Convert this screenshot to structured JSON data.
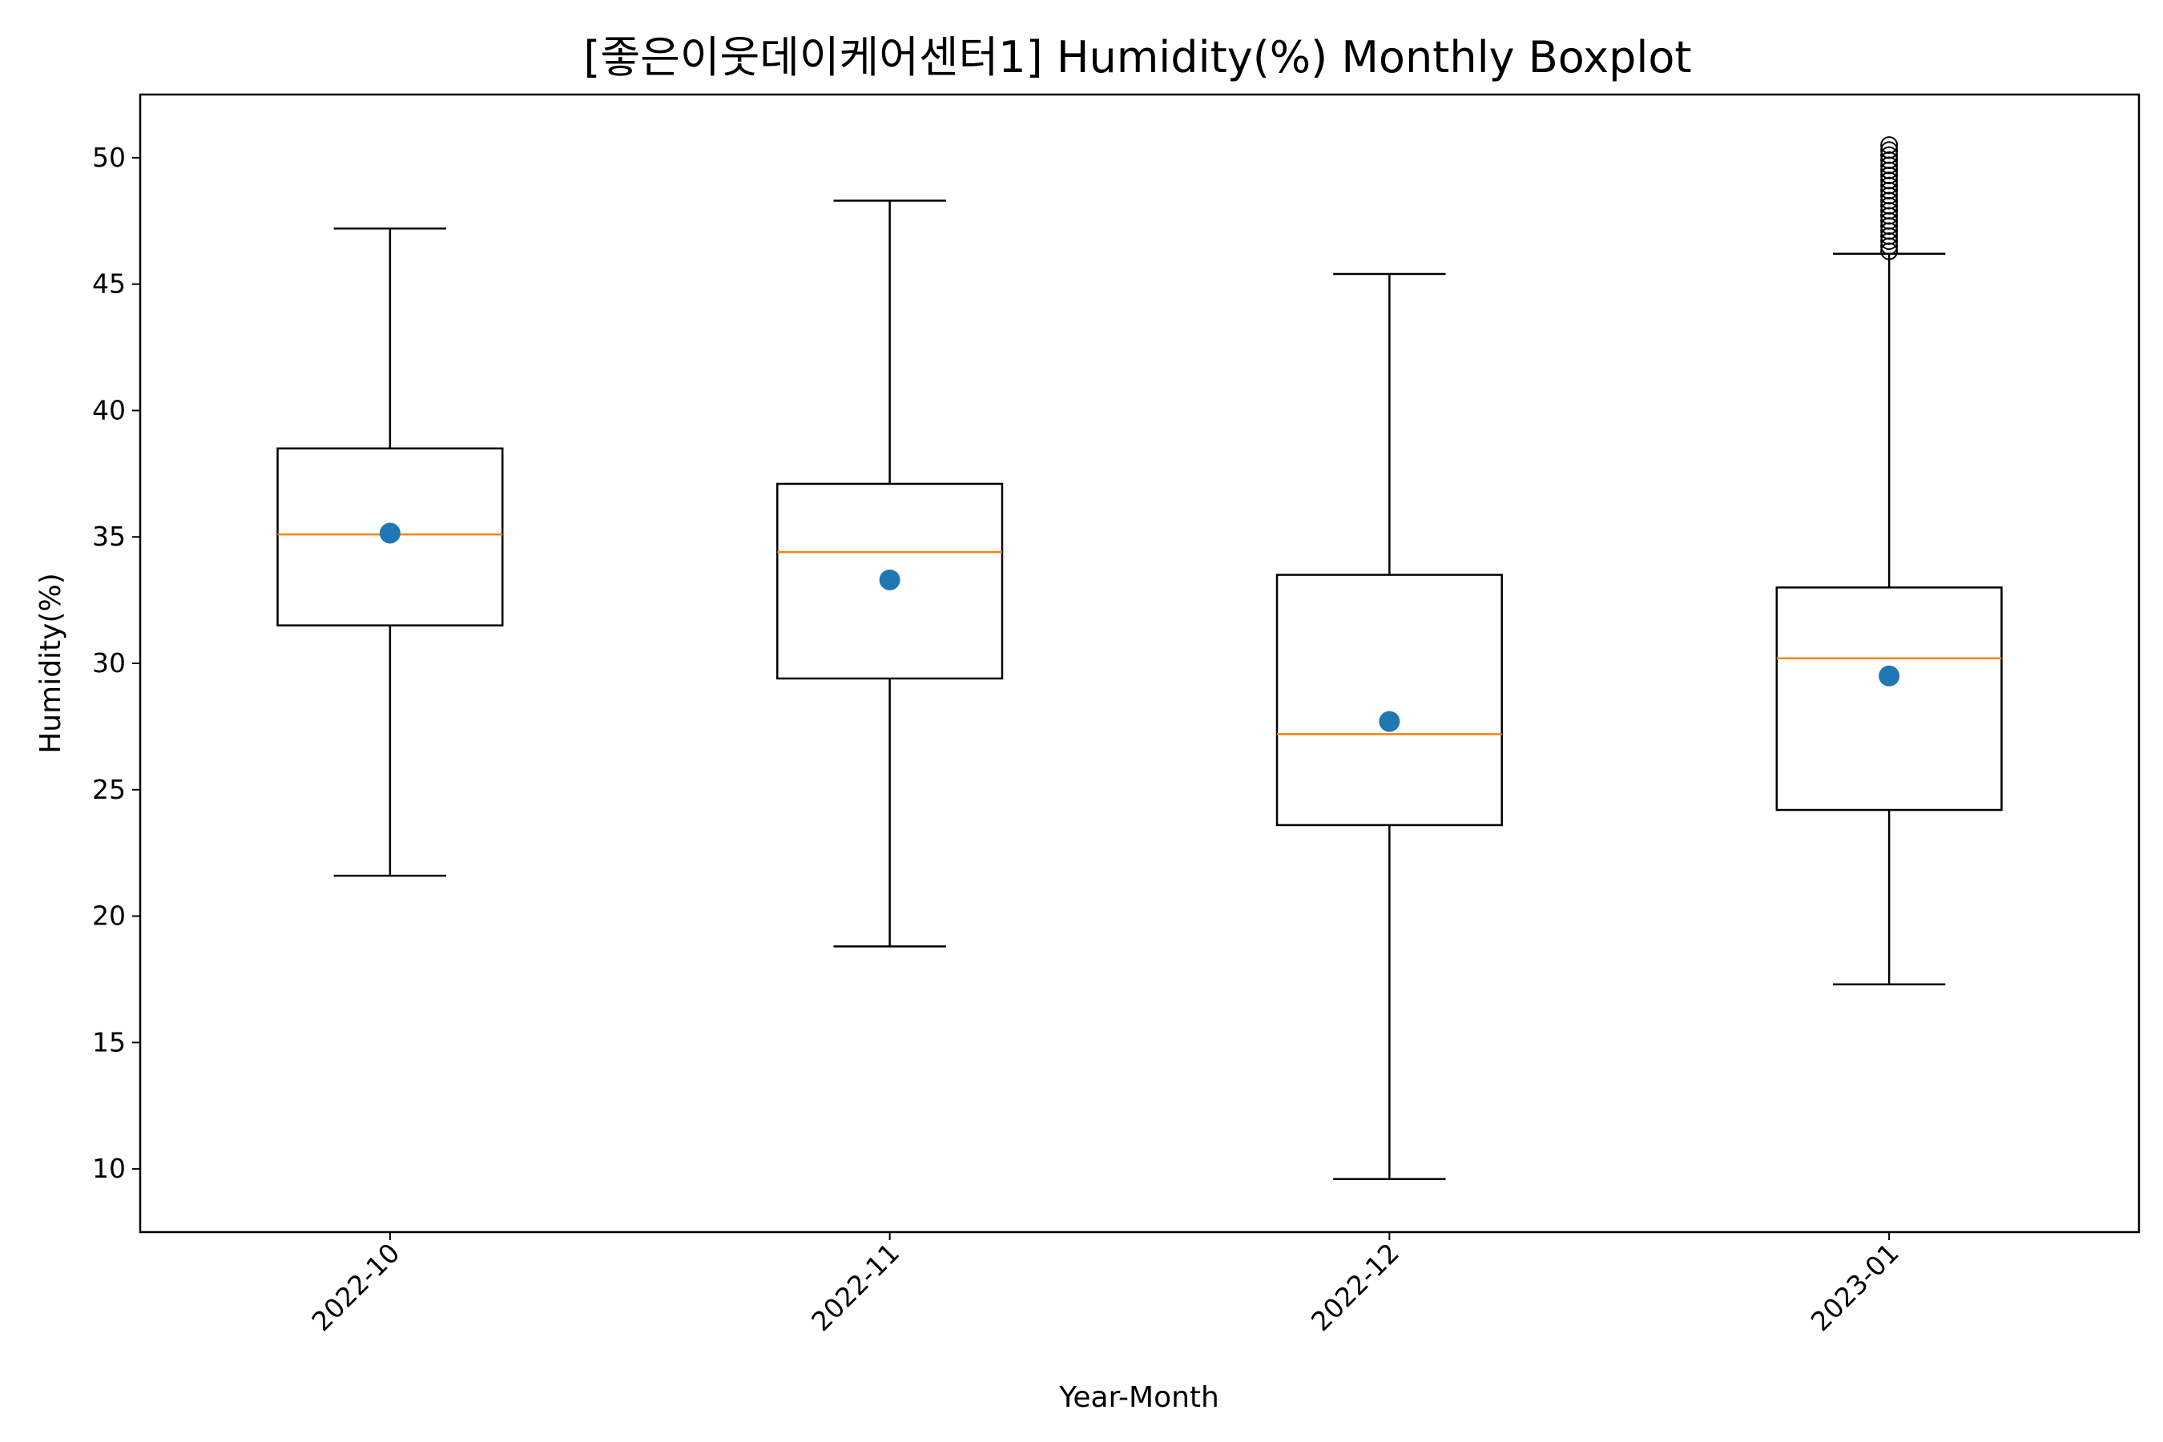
{
  "chart_data": {
    "type": "boxplot",
    "title": "[좋은이웃데이케어센터1] Humidity(%) Monthly Boxplot",
    "xlabel": "Year-Month",
    "ylabel": "Humidity(%)",
    "ylim": [
      7.5,
      52.5
    ],
    "yticks": [
      10,
      15,
      20,
      25,
      30,
      35,
      40,
      45,
      50
    ],
    "categories": [
      "2022-10",
      "2022-11",
      "2022-12",
      "2023-01"
    ],
    "boxes": [
      {
        "label": "2022-10",
        "whisker_low": 21.6,
        "q1": 31.5,
        "median": 35.1,
        "q3": 38.5,
        "whisker_high": 47.2,
        "mean": 35.15,
        "outliers": []
      },
      {
        "label": "2022-11",
        "whisker_low": 18.8,
        "q1": 29.4,
        "median": 34.4,
        "q3": 37.1,
        "whisker_high": 48.3,
        "mean": 33.3,
        "outliers": []
      },
      {
        "label": "2022-12",
        "whisker_low": 9.6,
        "q1": 23.6,
        "median": 27.2,
        "q3": 33.5,
        "whisker_high": 45.4,
        "mean": 27.7,
        "outliers": []
      },
      {
        "label": "2023-01",
        "whisker_low": 17.3,
        "q1": 24.2,
        "median": 30.2,
        "q3": 33.0,
        "whisker_high": 46.2,
        "mean": 29.5,
        "outliers": [
          46.3,
          46.5,
          46.7,
          46.9,
          47.1,
          47.3,
          47.5,
          47.7,
          47.9,
          48.1,
          48.3,
          48.5,
          48.7,
          48.9,
          49.1,
          49.3,
          49.5,
          49.7,
          49.9,
          50.1,
          50.3,
          50.5
        ]
      }
    ],
    "colors": {
      "box": "#000000",
      "median": "#ff7f0e",
      "mean": "#1f77b4",
      "outlier": "#000000"
    },
    "grid": false,
    "legend": "none",
    "x_tick_rotation_deg": 45
  }
}
